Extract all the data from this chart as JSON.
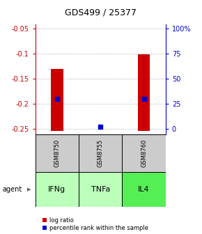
{
  "title": "GDS499 / 25377",
  "left_ylim": [
    -0.262,
    -0.042
  ],
  "left_yticks": [
    -0.05,
    -0.1,
    -0.15,
    -0.2,
    -0.25
  ],
  "samples": [
    "GSM8750",
    "GSM8755",
    "GSM8760"
  ],
  "agents": [
    "IFNg",
    "TNFa",
    "IL4"
  ],
  "agent_colors": [
    "#bbffbb",
    "#bbffbb",
    "#55ee55"
  ],
  "log_ratios": [
    -0.131,
    -0.255,
    -0.101
  ],
  "log_ratio_base": -0.255,
  "percentile_values": [
    30,
    2,
    30
  ],
  "bar_color": "#cc0000",
  "blue_color": "#0000cc",
  "sample_bg": "#cccccc",
  "legend_red_label": "log ratio",
  "legend_blue_label": "percentile rank within the sample",
  "left_axis_color": "#cc0000",
  "right_axis_color": "#0000cc",
  "grid_color": "#999999",
  "title_fontsize": 9,
  "tick_fontsize": 7,
  "sample_fontsize": 6,
  "agent_fontsize": 8
}
